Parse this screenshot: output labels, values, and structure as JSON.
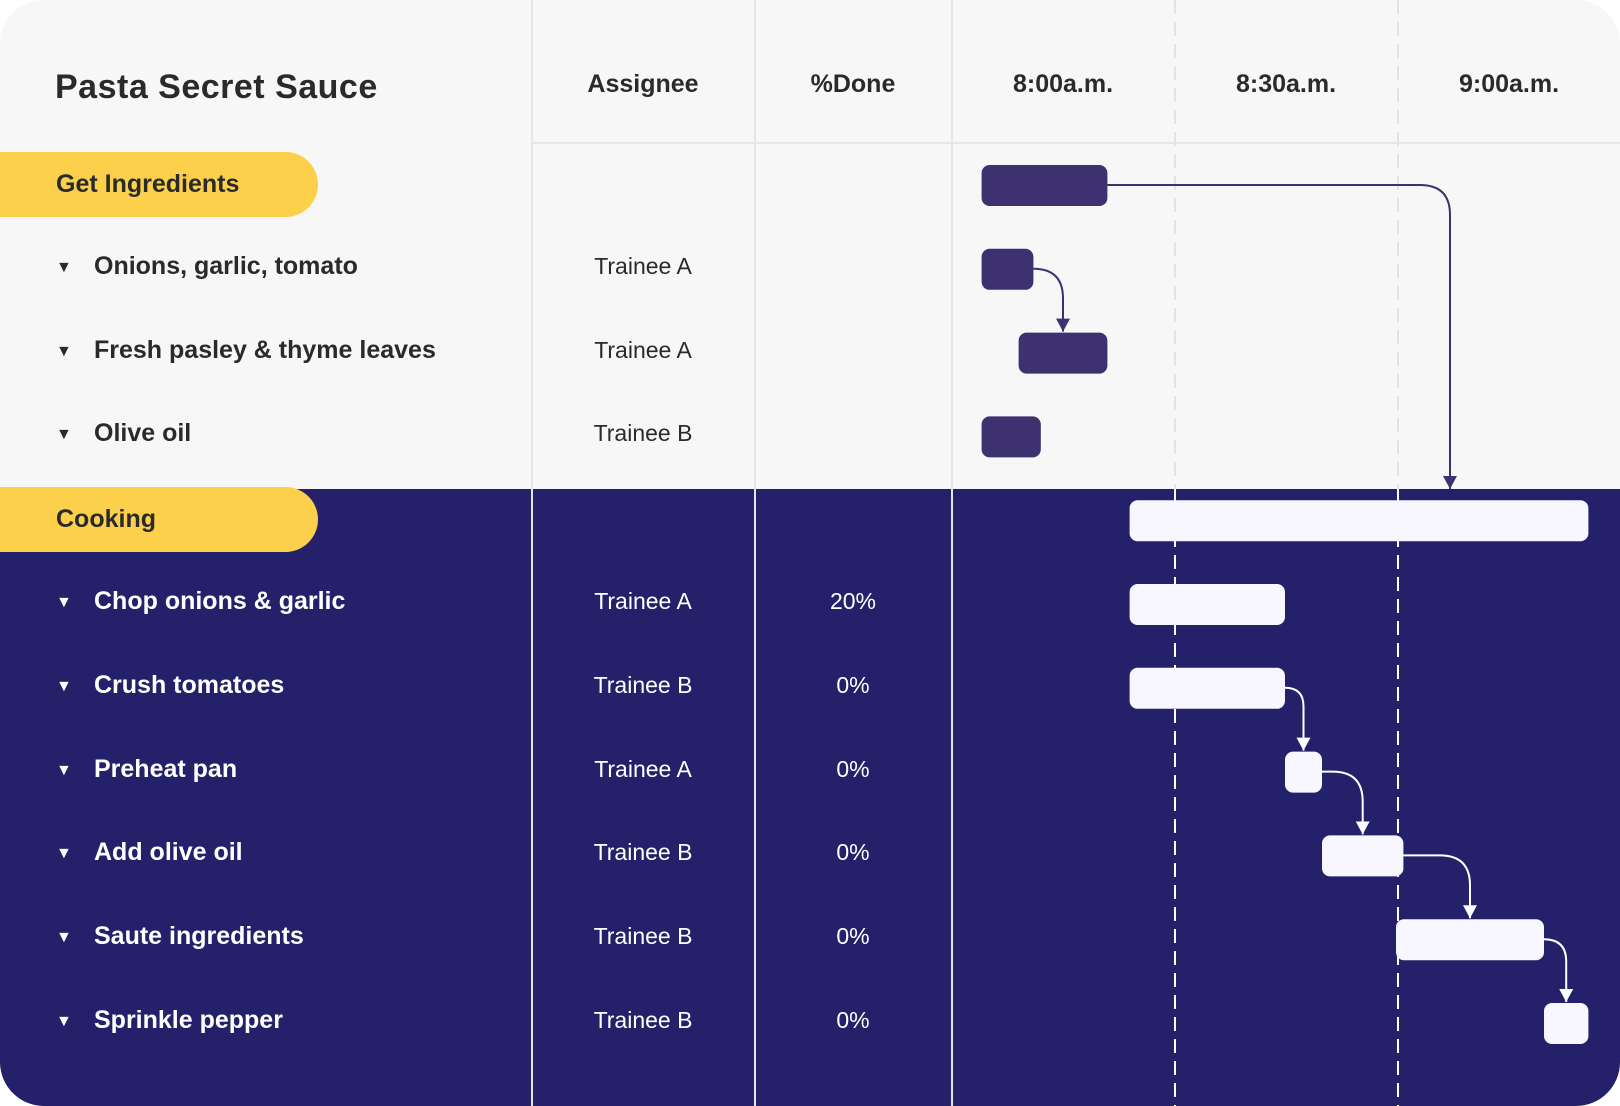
{
  "title": "Pasta Secret Sauce",
  "headers": {
    "assignee": "Assignee",
    "done": "%Done"
  },
  "colors": {
    "light_bg": "#f7f7f7",
    "dark_bg": "#24216a",
    "group_pill": "#fcd04a",
    "bar_light_section": "#3d3170",
    "bar_dark_section": "#f8f6fe"
  },
  "chart_data": {
    "type": "gantt",
    "time_ticks": [
      "8:00a.m.",
      "8:30a.m.",
      "9:00a.m."
    ],
    "grid": "dashed vertical lines at 8:30 and 9:00",
    "groups": [
      {
        "name": "Get Ingredients",
        "start": "8:04",
        "end": "8:21",
        "tasks": [
          {
            "name": "Onions, garlic, tomato",
            "assignee": "Trainee A",
            "done": "",
            "start": "8:04",
            "end": "8:11"
          },
          {
            "name": "Fresh pasley & thyme leaves",
            "assignee": "Trainee A",
            "done": "",
            "start": "8:09",
            "end": "8:21"
          },
          {
            "name": "Olive oil",
            "assignee": "Trainee B",
            "done": "",
            "start": "8:04",
            "end": "8:12"
          }
        ]
      },
      {
        "name": "Cooking",
        "start": "8:24",
        "end": "9:26",
        "tasks": [
          {
            "name": "Chop onions & garlic",
            "assignee": "Trainee A",
            "done": "20%",
            "start": "8:24",
            "end": "8:45"
          },
          {
            "name": "Crush tomatoes",
            "assignee": "Trainee B",
            "done": "0%",
            "start": "8:24",
            "end": "8:45"
          },
          {
            "name": "Preheat pan",
            "assignee": "Trainee A",
            "done": "0%",
            "start": "8:45",
            "end": "8:50"
          },
          {
            "name": "Add olive oil",
            "assignee": "Trainee B",
            "done": "0%",
            "start": "8:50",
            "end": "9:01"
          },
          {
            "name": "Saute ingredients",
            "assignee": "Trainee B",
            "done": "0%",
            "start": "9:00",
            "end": "9:20"
          },
          {
            "name": "Sprinkle pepper",
            "assignee": "Trainee B",
            "done": "0%",
            "start": "9:20",
            "end": "9:26"
          }
        ]
      }
    ],
    "dependencies": [
      [
        "Get Ingredients",
        "Cooking"
      ],
      [
        "Onions, garlic, tomato",
        "Fresh pasley & thyme leaves"
      ],
      [
        "Crush tomatoes",
        "Preheat pan"
      ],
      [
        "Preheat pan",
        "Add olive oil"
      ],
      [
        "Add olive oil",
        "Saute ingredients"
      ],
      [
        "Saute ingredients",
        "Sprinkle pepper"
      ]
    ]
  }
}
